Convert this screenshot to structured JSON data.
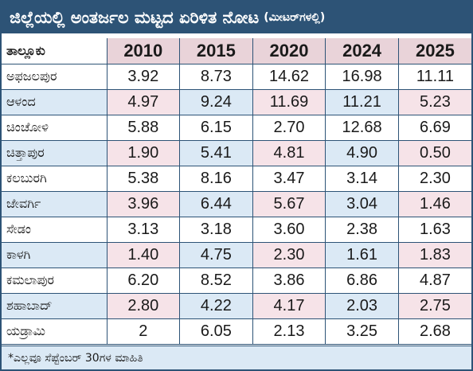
{
  "title": "ಜಿಲ್ಲೆಯಲ್ಲಿ ಅಂತರ್ಜಲ ಮಟ್ಟದ ಏರಿಳಿತ ನೋಟ",
  "title_unit": "(ಮೀಟರ್‌ಗಳಲ್ಲಿ)",
  "table": {
    "header_name": "ತಾಲ್ಲೂಕು",
    "years": [
      "2010",
      "2015",
      "2020",
      "2024",
      "2025"
    ],
    "rows": [
      {
        "name": "ಅಫಜಲಪುರ",
        "values": [
          "3.92",
          "8.73",
          "14.62",
          "16.98",
          "11.11"
        ]
      },
      {
        "name": "ಆಳಂದ",
        "values": [
          "4.97",
          "9.24",
          "11.69",
          "11.21",
          "5.23"
        ]
      },
      {
        "name": "ಚಿಂಚೋಳಿ",
        "values": [
          "5.88",
          "6.15",
          "2.70",
          "12.68",
          "6.69"
        ]
      },
      {
        "name": "ಚಿತ್ತಾಪುರ",
        "values": [
          "1.90",
          "5.41",
          "4.81",
          "4.90",
          "0.50"
        ]
      },
      {
        "name": "ಕಲಬುರಗಿ",
        "values": [
          "5.38",
          "8.16",
          "3.47",
          "3.14",
          "2.30"
        ]
      },
      {
        "name": "ಜೇವರ್ಗಿ",
        "values": [
          "3.96",
          "6.44",
          "5.67",
          "3.04",
          "1.46"
        ]
      },
      {
        "name": "ಸೇಡಂ",
        "values": [
          "3.13",
          "3.18",
          "3.60",
          "2.38",
          "1.63"
        ]
      },
      {
        "name": "ಕಾಳಗಿ",
        "values": [
          "1.40",
          "4.75",
          "2.30",
          "1.61",
          "1.83"
        ]
      },
      {
        "name": "ಕಮಲಾಪುರ",
        "values": [
          "6.20",
          "8.52",
          "3.86",
          "6.86",
          "4.87"
        ]
      },
      {
        "name": "ಶಹಾಬಾದ್",
        "values": [
          "2.80",
          "4.22",
          "4.17",
          "2.03",
          "2.75"
        ]
      },
      {
        "name": "ಯಡ್ರಾಮಿ",
        "values": [
          "2",
          "6.05",
          "2.13",
          "3.25",
          "2.68"
        ]
      }
    ]
  },
  "footnote": "*ಎಲ್ಲವೂ ಸೆಪ್ಟೆಂಬರ್ 30ಗಳ ಮಾಹಿತಿ",
  "colors": {
    "title_bar": "#2d5376",
    "header_row": "#e9d3d9",
    "alt_row_blue": "#dbe9f5",
    "alt_row_pink": "#f6e3e8"
  }
}
